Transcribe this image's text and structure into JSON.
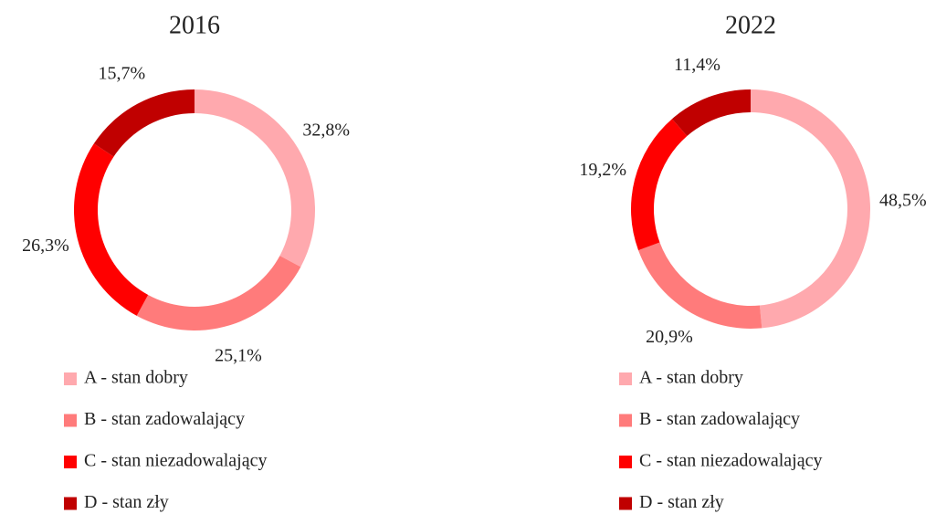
{
  "chart_data": [
    {
      "type": "donut",
      "title": "2016",
      "categories": [
        "A - stan dobry",
        "B - stan zadowalający",
        "C - stan niezadowalający",
        "D - stan zły"
      ],
      "values": [
        32.8,
        25.1,
        26.3,
        15.7
      ],
      "value_labels": [
        "32,8%",
        "25,1%",
        "26,3%",
        "15,7%"
      ],
      "colors": [
        "#ffa9ae",
        "#ff7b7b",
        "#ff0000",
        "#c00000"
      ]
    },
    {
      "type": "donut",
      "title": "2022",
      "categories": [
        "A - stan dobry",
        "B - stan zadowalający",
        "C - stan niezadowalający",
        "D - stan zły"
      ],
      "values": [
        48.5,
        20.9,
        19.2,
        11.4
      ],
      "value_labels": [
        "48,5%",
        "20,9%",
        "19,2%",
        "11,4%"
      ],
      "colors": [
        "#ffa9ae",
        "#ff7b7b",
        "#ff0000",
        "#c00000"
      ]
    }
  ]
}
